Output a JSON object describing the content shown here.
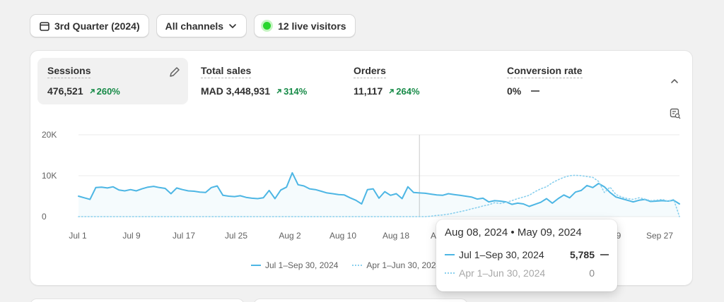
{
  "filters": {
    "date_range": "3rd Quarter (2024)",
    "channels": "All channels",
    "live_visitors": "12 live visitors"
  },
  "metrics": [
    {
      "label": "Sessions",
      "value": "476,521",
      "delta": "260%"
    },
    {
      "label": "Total sales",
      "value": "MAD 3,448,931",
      "delta": "314%"
    },
    {
      "label": "Orders",
      "value": "11,117",
      "delta": "264%"
    },
    {
      "label": "Conversion rate",
      "value": "0%"
    }
  ],
  "colors": {
    "accent": "#4db6e4",
    "positive": "#168a47",
    "live": "#29d62e"
  },
  "chart_data": {
    "type": "line",
    "y_ticks": [
      "20K",
      "10K",
      "0"
    ],
    "ylim": [
      0,
      20000
    ],
    "x_ticks": [
      "Jul 1",
      "Jul 9",
      "Jul 17",
      "Jul 25",
      "Aug 2",
      "Aug 10",
      "Aug 18",
      "A",
      "9",
      "Sep 27"
    ],
    "grid": true,
    "legend_position": "bottom",
    "series": [
      {
        "name": "Jul 1–Sep 30, 2024",
        "style": "solid",
        "values": [
          5000,
          4600,
          4200,
          7100,
          7200,
          7000,
          7300,
          6500,
          6300,
          6600,
          6300,
          6800,
          7200,
          7400,
          7100,
          6900,
          5600,
          7000,
          6600,
          6300,
          6200,
          6000,
          5900,
          7100,
          7500,
          5200,
          5000,
          4900,
          5100,
          4700,
          4500,
          4400,
          4600,
          6400,
          4400,
          6500,
          7200,
          10700,
          7800,
          7500,
          6800,
          6600,
          6200,
          5800,
          5600,
          5400,
          5300,
          4600,
          4000,
          3100,
          6600,
          6800,
          4500,
          6100,
          5200,
          5600,
          4400,
          7300,
          5900,
          5785,
          5700,
          5500,
          5300,
          5200,
          5600,
          5400,
          5200,
          5000,
          4800,
          4300,
          4500,
          3600,
          3900,
          3800,
          3600,
          3000,
          3300,
          3100,
          2500,
          3000,
          3500,
          4400,
          3300,
          4400,
          5300,
          4600,
          6000,
          6400,
          7600,
          7100,
          8100,
          7300,
          5900,
          4800,
          4400,
          4000,
          3600,
          4000,
          4200,
          3700,
          3800,
          3900,
          3800,
          4000,
          3100
        ]
      },
      {
        "name": "Apr 1–Jun 30, 2024",
        "style": "dotted",
        "values": [
          0,
          0,
          0,
          0,
          0,
          0,
          0,
          0,
          0,
          0,
          0,
          0,
          0,
          0,
          0,
          0,
          0,
          0,
          0,
          0,
          0,
          0,
          0,
          0,
          0,
          0,
          0,
          0,
          0,
          0,
          0,
          0,
          0,
          0,
          0,
          0,
          0,
          0,
          0,
          0,
          0,
          0,
          0,
          0,
          0,
          0,
          0,
          0,
          0,
          0,
          0,
          0,
          0,
          0,
          0,
          0,
          0,
          0,
          0,
          0,
          0,
          100,
          300,
          400,
          600,
          900,
          1200,
          1500,
          1900,
          2200,
          2600,
          2900,
          3400,
          3200,
          3500,
          3900,
          4400,
          4800,
          5200,
          6100,
          6800,
          7300,
          8300,
          9000,
          9600,
          10000,
          10100,
          10000,
          9800,
          9600,
          8600,
          5900,
          7200,
          5400,
          4800,
          4400,
          4200,
          4600,
          4300,
          3900,
          4000,
          4200,
          3800,
          4200,
          0
        ]
      }
    ],
    "hover_index": 59
  },
  "tooltip": {
    "title": "Aug 08, 2024 • May 09, 2024",
    "current": {
      "label": "Jul 1–Sep 30, 2024",
      "value": "5,785"
    },
    "previous": {
      "label": "Apr 1–Jun 30, 2024",
      "value": "0"
    }
  },
  "icons": [
    "calendar-icon",
    "chevron-down-icon",
    "pencil-icon",
    "chevron-up-icon",
    "chart-settings-icon",
    "trend-up-icon"
  ]
}
